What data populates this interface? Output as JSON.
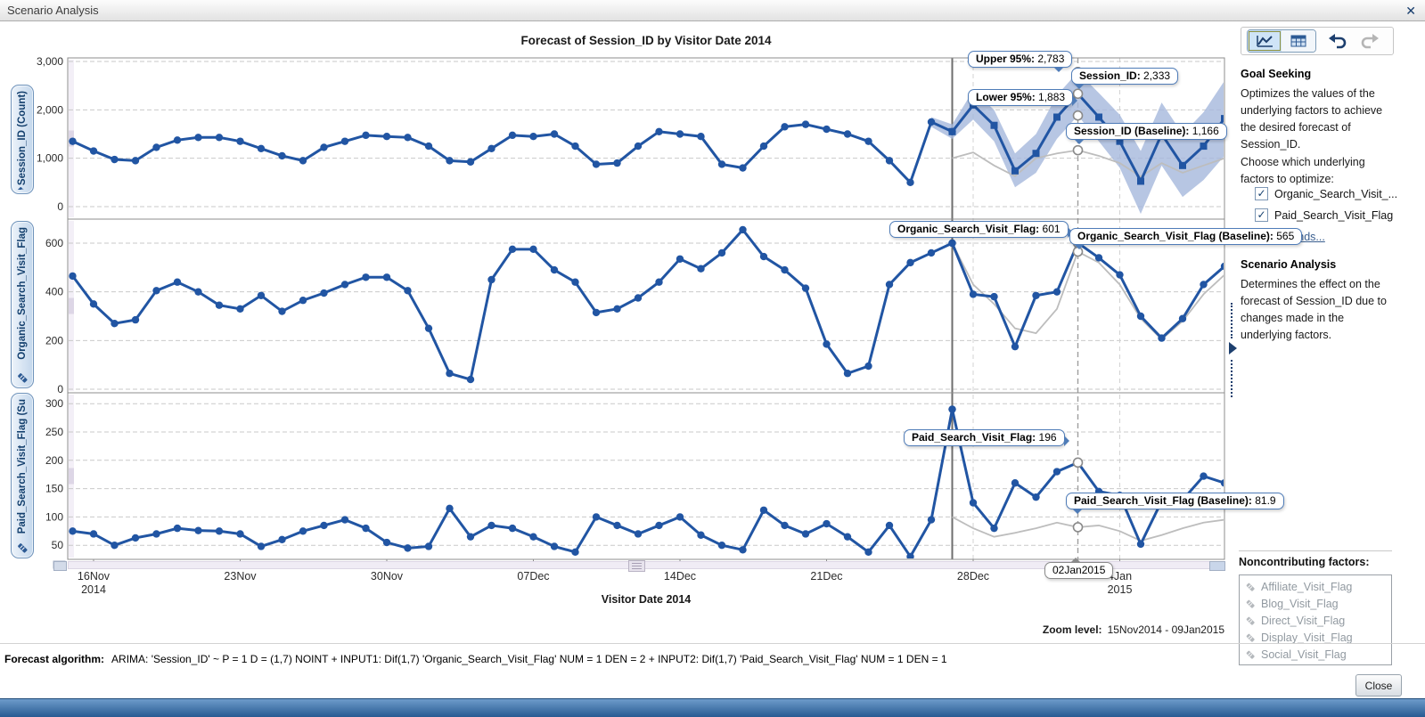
{
  "window": {
    "title": "Scenario Analysis",
    "close_icon": "✕"
  },
  "toolbar": {
    "buttons": [
      "chart-view",
      "table-view",
      "undo",
      "redo"
    ],
    "selected": "chart-view"
  },
  "sidebar": {
    "goal_seeking": {
      "title": "Goal Seeking",
      "desc": "Optimizes the values of the underlying factors to achieve the desired forecast of Session_ID.",
      "choose": "Choose which underlying factors to optimize:",
      "factors": [
        {
          "label": "Organic_Search_Visit_...",
          "checked": true
        },
        {
          "label": "Paid_Search_Visit_Flag",
          "checked": true
        }
      ],
      "bounds_link": "Bounds..."
    },
    "scenario": {
      "title": "Scenario Analysis",
      "desc": "Determines the effect on the forecast of Session_ID due to changes made in the underlying factors."
    },
    "noncontributing": {
      "title": "Noncontributing factors:",
      "items": [
        "Affiliate_Visit_Flag",
        "Blog_Visit_Flag",
        "Direct_Visit_Flag",
        "Display_Visit_Flag",
        "Social_Visit_Flag"
      ]
    }
  },
  "callouts": {
    "upper95": {
      "label": "Upper 95%:",
      "value": "2,783"
    },
    "session": {
      "label": "Session_ID:",
      "value": "2,333"
    },
    "lower95": {
      "label": "Lower 95%:",
      "value": "1,883"
    },
    "session_baseline": {
      "label": "Session_ID (Baseline):",
      "value": "1,166"
    },
    "organic": {
      "label": "Organic_Search_Visit_Flag:",
      "value": "601"
    },
    "organic_baseline": {
      "label": "Organic_Search_Visit_Flag (Baseline):",
      "value": "565"
    },
    "paid": {
      "label": "Paid_Search_Visit_Flag:",
      "value": "196"
    },
    "paid_baseline": {
      "label": "Paid_Search_Visit_Flag (Baseline):",
      "value": "81.9"
    },
    "date": {
      "value": "02Jan2015"
    }
  },
  "footer": {
    "zoom_label": "Zoom level:",
    "zoom_value": "15Nov2014 - 09Jan2015",
    "algorithm_label": "Forecast algorithm:",
    "algorithm": "ARIMA:  'Session_ID'  ~ P = 1  D = (1,7)   NOINT  +  INPUT1: Dif(1,7) 'Organic_Search_Visit_Flag'  NUM = 1  DEN = 2   +  INPUT2: Dif(1,7) 'Paid_Search_Visit_Flag'  NUM = 1  DEN = 1",
    "close_button": "Close"
  },
  "chart_data": {
    "type": "line",
    "title": "Forecast of Session_ID by Visitor Date 2014",
    "xlabel": "Visitor Date 2014",
    "n_points": 56,
    "x_range": [
      "15Nov2014",
      "09Jan2015"
    ],
    "forecast_start_index": 42,
    "band_start_index": 41,
    "reference_index": 48,
    "reference_label": "02Jan2015",
    "x_ticks": [
      {
        "i": 1,
        "label": "16Nov",
        "sub": "2014"
      },
      {
        "i": 8,
        "label": "23Nov"
      },
      {
        "i": 15,
        "label": "30Nov"
      },
      {
        "i": 22,
        "label": "07Dec"
      },
      {
        "i": 29,
        "label": "14Dec"
      },
      {
        "i": 36,
        "label": "21Dec"
      },
      {
        "i": 43,
        "label": "28Dec"
      },
      {
        "i": 50,
        "label": "4Jan",
        "sub": "2015"
      }
    ],
    "anchors": [
      {
        "panel": 0,
        "value": 2783
      },
      {
        "panel": 0,
        "value": 2333
      },
      {
        "panel": 0,
        "value": 1883
      },
      {
        "panel": 0,
        "value": 1166
      },
      {
        "panel": 1,
        "value": 601
      },
      {
        "panel": 1,
        "value": 565
      },
      {
        "panel": 2,
        "value": 196
      },
      {
        "panel": 2,
        "value": 81.9
      }
    ],
    "panels": [
      {
        "name": "Session_ID (Count)",
        "ylim": [
          0,
          3000
        ],
        "yticks": [
          {
            "v": 0,
            "label": "0"
          },
          {
            "v": 1000,
            "label": "1,000"
          },
          {
            "v": 2000,
            "label": "2,000"
          },
          {
            "v": 3000,
            "label": "3,000"
          }
        ],
        "forecast_marker": "square",
        "actual": [
          1350,
          1150,
          975,
          950,
          1225,
          1375,
          1430,
          1430,
          1350,
          1200,
          1050,
          950,
          1225,
          1350,
          1475,
          1450,
          1430,
          1250,
          950,
          925,
          1200,
          1475,
          1450,
          1500,
          1250,
          875,
          900,
          1250,
          1550,
          1500,
          1450,
          875,
          800,
          1250,
          1650,
          1700,
          1600,
          1500,
          1350,
          950,
          500,
          1750,
          1550
        ],
        "forecast": [
          1550,
          2100,
          1680,
          740,
          1100,
          1850,
          2333,
          1850,
          1350,
          525,
          1500,
          850,
          1250,
          1820
        ],
        "baseline": [
          1000,
          1120,
          850,
          630,
          1000,
          1100,
          1166,
          1050,
          900,
          620,
          900,
          700,
          850,
          1000
        ],
        "upper95": [
          1850,
          1700,
          2400,
          2000,
          1100,
          1500,
          2300,
          2783,
          2350,
          1900,
          1150,
          2150,
          1500,
          1950,
          2600
        ],
        "lower95": [
          1650,
          1400,
          1800,
          1350,
          400,
          700,
          1400,
          1883,
          1350,
          800,
          -150,
          850,
          200,
          550,
          1050
        ]
      },
      {
        "name": "Organic_Search_Visit_Flag",
        "ylim": [
          0,
          650
        ],
        "yticks": [
          {
            "v": 0,
            "label": "0"
          },
          {
            "v": 200,
            "label": "200"
          },
          {
            "v": 400,
            "label": "400"
          },
          {
            "v": 600,
            "label": "600"
          }
        ],
        "forecast_marker": "circle",
        "actual": [
          465,
          350,
          270,
          285,
          405,
          440,
          400,
          345,
          330,
          385,
          320,
          365,
          395,
          430,
          460,
          460,
          405,
          250,
          65,
          40,
          450,
          575,
          575,
          490,
          440,
          315,
          330,
          375,
          440,
          535,
          495,
          560,
          655,
          545,
          490,
          415,
          185,
          65,
          95,
          430,
          520,
          560,
          600
        ],
        "forecast": [
          600,
          390,
          380,
          175,
          385,
          400,
          601,
          540,
          470,
          300,
          210,
          290,
          430,
          505
        ],
        "baseline": [
          600,
          430,
          350,
          250,
          230,
          330,
          565,
          520,
          430,
          290,
          205,
          280,
          390,
          470
        ]
      },
      {
        "name": "Paid_Search_Visit_Flag (Su",
        "ylim": [
          0,
          300
        ],
        "yticks": [
          {
            "v": 50,
            "label": "50"
          },
          {
            "v": 100,
            "label": "100"
          },
          {
            "v": 150,
            "label": "150"
          },
          {
            "v": 200,
            "label": "200"
          },
          {
            "v": 250,
            "label": "250"
          },
          {
            "v": 300,
            "label": "300"
          }
        ],
        "forecast_marker": "circle",
        "actual": [
          75,
          70,
          50,
          63,
          70,
          80,
          76,
          75,
          70,
          48,
          60,
          75,
          85,
          95,
          80,
          55,
          45,
          48,
          115,
          65,
          85,
          80,
          65,
          48,
          38,
          100,
          85,
          70,
          85,
          100,
          68,
          50,
          42,
          112,
          85,
          70,
          88,
          65,
          38,
          85,
          30,
          95,
          290
        ],
        "forecast": [
          290,
          125,
          80,
          160,
          135,
          180,
          196,
          145,
          138,
          52,
          128,
          130,
          172,
          160
        ],
        "baseline": [
          100,
          80,
          65,
          72,
          80,
          90,
          81.9,
          85,
          75,
          58,
          68,
          80,
          90,
          95
        ]
      }
    ],
    "colors": {
      "series": "#2155a3",
      "band": "#a5b8dc",
      "baseline": "#bdbdbd",
      "grid": "#c9c9c9",
      "border": "#8c8c8c",
      "boundary_line": "#6e6e6e",
      "reference_line": "#9e9e9e"
    }
  }
}
